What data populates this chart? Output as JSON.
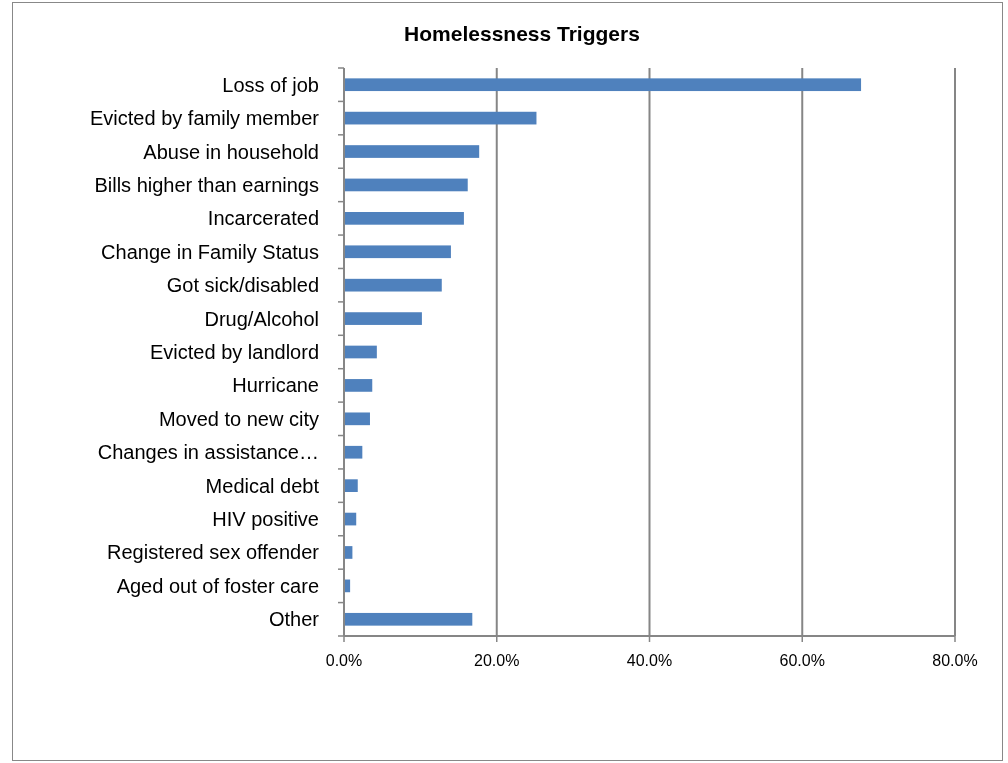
{
  "chart_data": {
    "type": "bar",
    "orientation": "horizontal",
    "title": "Homelessness Triggers",
    "categories": [
      "Loss of job",
      "Evicted by family member",
      "Abuse in household",
      "Bills higher than earnings",
      "Incarcerated",
      "Change in Family Status",
      "Got sick/disabled",
      "Drug/Alcohol",
      "Evicted by landlord",
      "Hurricane",
      "Moved to new city",
      "Changes in assistance…",
      "Medical debt",
      "HIV positive",
      "Registered sex offender",
      "Aged out of foster care",
      "Other"
    ],
    "values": [
      67.7,
      25.2,
      17.7,
      16.2,
      15.7,
      14.0,
      12.8,
      10.2,
      4.3,
      3.7,
      3.4,
      2.4,
      1.8,
      1.6,
      1.1,
      0.8,
      16.8
    ],
    "color": "#4f81bd",
    "xlim": [
      0,
      80
    ],
    "xticks": [
      {
        "value": 0,
        "label": "0.0%"
      },
      {
        "value": 20,
        "label": "20.0%"
      },
      {
        "value": 40,
        "label": "40.0%"
      },
      {
        "value": 60,
        "label": "60.0%"
      },
      {
        "value": 80,
        "label": "80.0%"
      }
    ],
    "grid": "x"
  }
}
